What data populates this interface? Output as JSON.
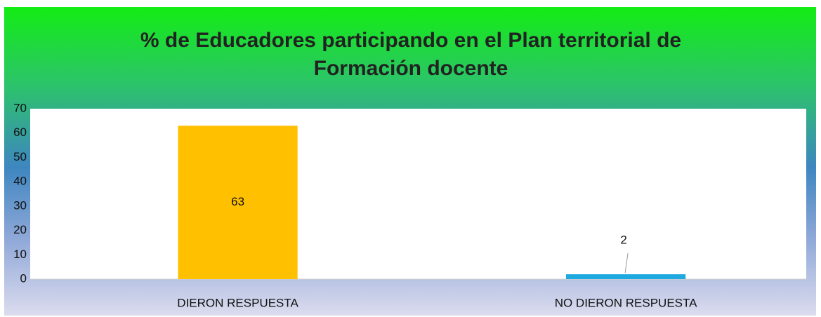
{
  "chart_data": {
    "type": "bar",
    "title": "% de Educadores participando en el Plan territorial de Formación docente",
    "categories": [
      "DIERON RESPUESTA",
      "NO DIERON RESPUESTA"
    ],
    "values": [
      63,
      2
    ],
    "colors": [
      "#ffc000",
      "#1fa9e1"
    ],
    "ylim": [
      0,
      70
    ],
    "yticks": [
      0,
      10,
      20,
      30,
      40,
      50,
      60,
      70
    ],
    "grid": false
  }
}
